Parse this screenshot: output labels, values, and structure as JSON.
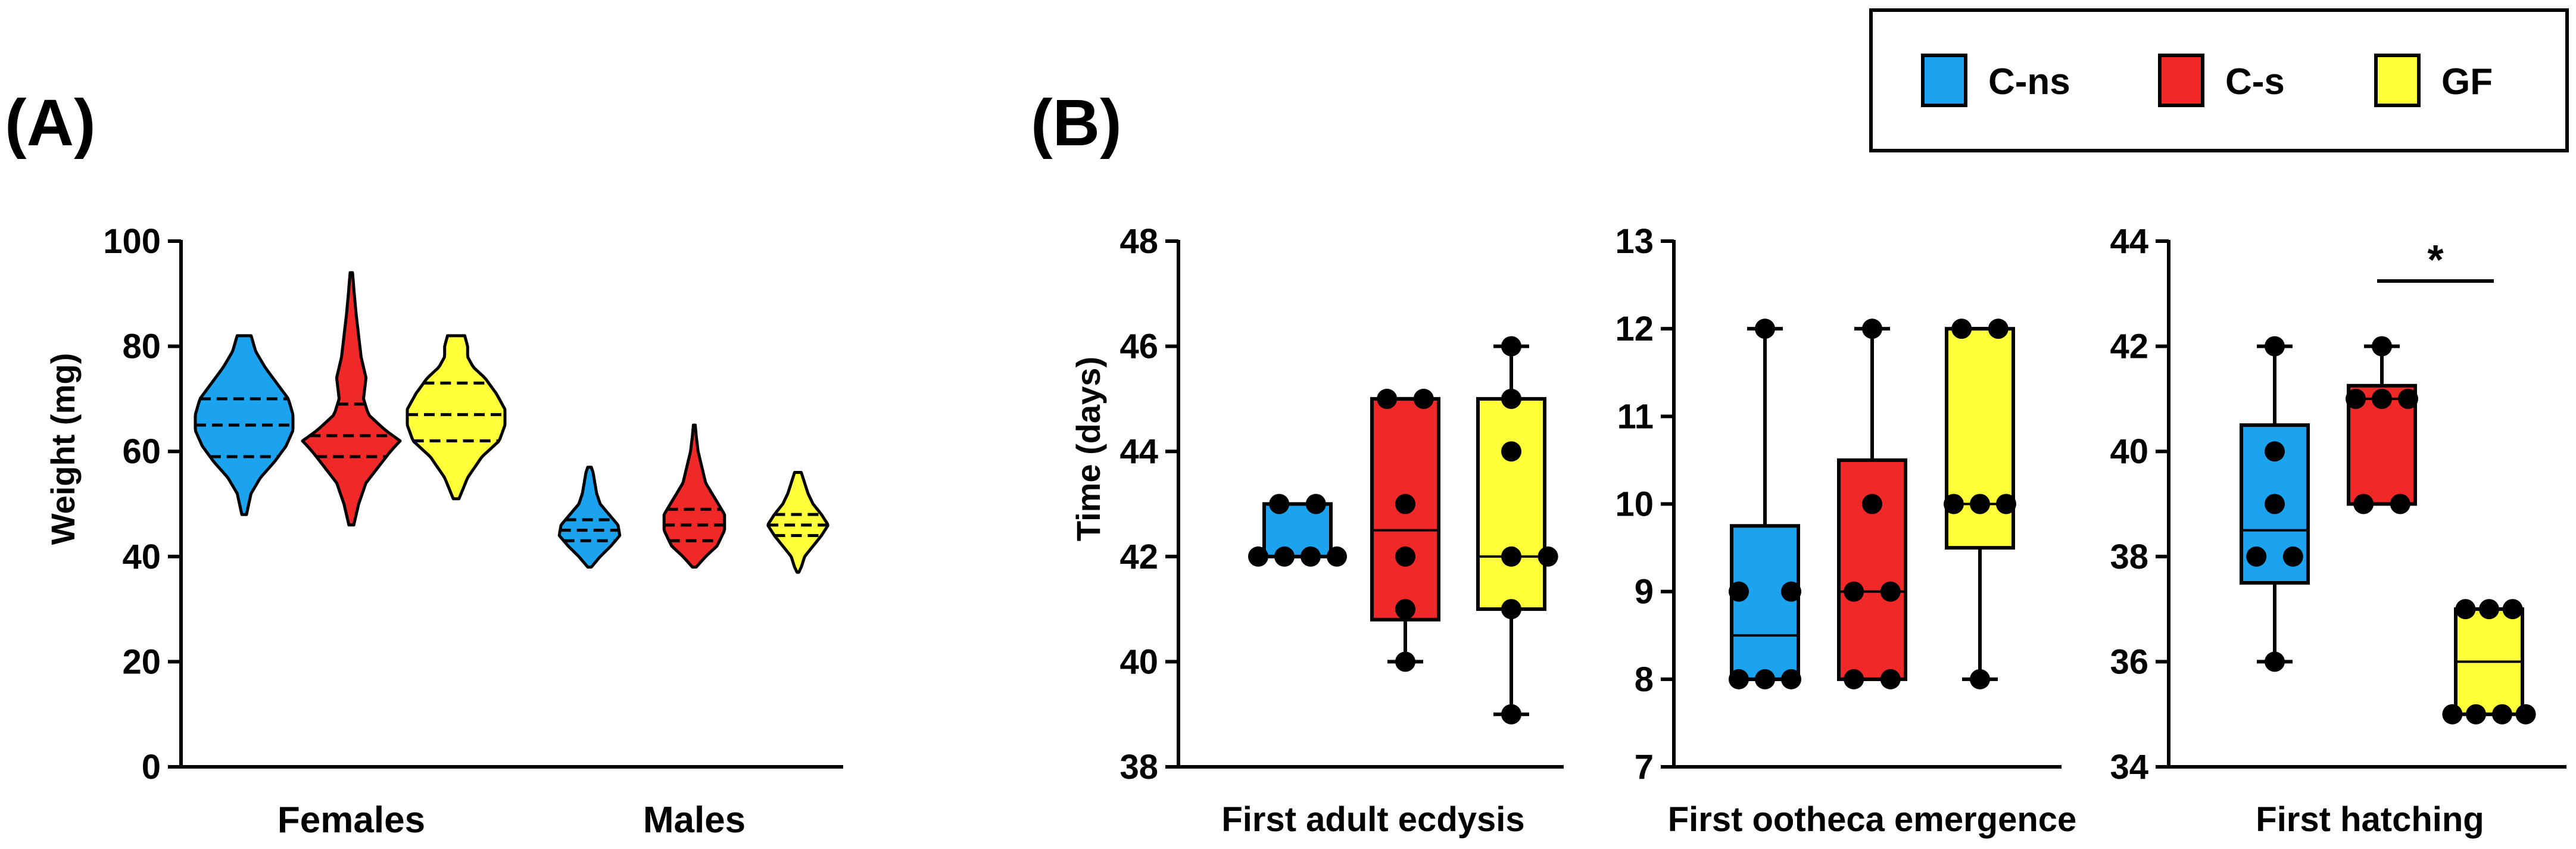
{
  "colors": {
    "C-ns": "#1ba3f0",
    "C-s": "#f02828",
    "GF": "#ffff3a"
  },
  "legend": {
    "items": [
      {
        "key": "C-ns",
        "label": "C-ns"
      },
      {
        "key": "C-s",
        "label": "C-s"
      },
      {
        "key": "GF",
        "label": "GF"
      }
    ]
  },
  "chart_data": [
    {
      "panel": "(A)",
      "type": "violin",
      "ylabel": "Weight (mg)",
      "ylim": [
        0,
        100
      ],
      "yticks": [
        0,
        20,
        40,
        60,
        80,
        100
      ],
      "categories": [
        "Females",
        "Males"
      ],
      "groups": [
        {
          "category": "Females",
          "series": "C-ns",
          "min": 48,
          "max": 82,
          "q1": 59,
          "median": 65,
          "q3": 70,
          "profile": [
            [
              48,
              1
            ],
            [
              52,
              3
            ],
            [
              55,
              7
            ],
            [
              58,
              13
            ],
            [
              61,
              18
            ],
            [
              64,
              21
            ],
            [
              67,
              21
            ],
            [
              70,
              19
            ],
            [
              73,
              14
            ],
            [
              76,
              9
            ],
            [
              79,
              5
            ],
            [
              82,
              3
            ]
          ]
        },
        {
          "category": "Females",
          "series": "C-s",
          "min": 46,
          "max": 94,
          "q1": 59,
          "median": 63,
          "q3": 69,
          "profile": [
            [
              46,
              1
            ],
            [
              50,
              3
            ],
            [
              54,
              6
            ],
            [
              57,
              11
            ],
            [
              60,
              16
            ],
            [
              62,
              20
            ],
            [
              64,
              14
            ],
            [
              67,
              7
            ],
            [
              70,
              5
            ],
            [
              74,
              6
            ],
            [
              78,
              4
            ],
            [
              82,
              3
            ],
            [
              86,
              2
            ],
            [
              90,
              1.2
            ],
            [
              94,
              0.5
            ]
          ]
        },
        {
          "category": "Females",
          "series": "GF",
          "min": 51,
          "max": 82,
          "q1": 62,
          "median": 67,
          "q3": 73,
          "profile": [
            [
              51,
              1
            ],
            [
              55,
              4
            ],
            [
              59,
              9
            ],
            [
              62,
              15
            ],
            [
              65,
              17
            ],
            [
              68,
              17
            ],
            [
              71,
              14
            ],
            [
              74,
              10
            ],
            [
              76,
              6
            ],
            [
              78,
              4
            ],
            [
              80,
              4
            ],
            [
              82,
              3
            ]
          ]
        },
        {
          "category": "Males",
          "series": "C-ns",
          "min": 38,
          "max": 57,
          "q1": 43,
          "median": 45,
          "q3": 47,
          "profile": [
            [
              38,
              1
            ],
            [
              40,
              6
            ],
            [
              42,
              12
            ],
            [
              44,
              17
            ],
            [
              46,
              16
            ],
            [
              48,
              11
            ],
            [
              50,
              6
            ],
            [
              52,
              4
            ],
            [
              54,
              3
            ],
            [
              56,
              2
            ],
            [
              57,
              1
            ]
          ]
        },
        {
          "category": "Males",
          "series": "C-s",
          "min": 38,
          "max": 65,
          "q1": 43,
          "median": 46,
          "q3": 49,
          "profile": [
            [
              38,
              1
            ],
            [
              40,
              6
            ],
            [
              42,
              12
            ],
            [
              45,
              16
            ],
            [
              48,
              16
            ],
            [
              51,
              11
            ],
            [
              54,
              6
            ],
            [
              57,
              4
            ],
            [
              60,
              2
            ],
            [
              63,
              1
            ],
            [
              65,
              0.5
            ]
          ]
        },
        {
          "category": "Males",
          "series": "GF",
          "min": 37,
          "max": 56,
          "q1": 44,
          "median": 46,
          "q3": 48,
          "profile": [
            [
              37,
              0.5
            ],
            [
              38,
              2
            ],
            [
              40,
              4
            ],
            [
              42,
              9
            ],
            [
              44,
              14
            ],
            [
              46,
              18
            ],
            [
              48,
              14
            ],
            [
              50,
              9
            ],
            [
              52,
              6
            ],
            [
              54,
              4
            ],
            [
              56,
              2
            ]
          ]
        }
      ]
    },
    {
      "panel": "(B)",
      "type": "box",
      "ylabel": "Time (days)",
      "xlabel": "First adult ecdysis",
      "ylim": [
        38,
        48
      ],
      "yticks": [
        38,
        40,
        42,
        44,
        46,
        48
      ],
      "boxes": [
        {
          "series": "C-ns",
          "whisker_low": 42,
          "q1": 42,
          "median": 42,
          "q3": 43,
          "whisker_high": 43,
          "points": [
            [
              42,
              -1.5
            ],
            [
              42,
              -0.5
            ],
            [
              42,
              0.5
            ],
            [
              42,
              1.5
            ],
            [
              43,
              -0.7
            ],
            [
              43,
              0.7
            ]
          ]
        },
        {
          "series": "C-s",
          "whisker_low": 40,
          "q1": 40.8,
          "median": 42.5,
          "q3": 45,
          "whisker_high": 45,
          "points": [
            [
              40,
              0
            ],
            [
              41,
              0
            ],
            [
              42,
              0
            ],
            [
              43,
              0
            ],
            [
              45,
              -0.7
            ],
            [
              45,
              0.7
            ]
          ]
        },
        {
          "series": "GF",
          "whisker_low": 39,
          "q1": 41,
          "median": 42,
          "q3": 45,
          "whisker_high": 46,
          "points": [
            [
              39,
              0
            ],
            [
              41,
              0
            ],
            [
              42,
              0
            ],
            [
              42,
              1.4
            ],
            [
              44,
              0
            ],
            [
              45,
              0
            ],
            [
              46,
              0
            ]
          ]
        }
      ]
    },
    {
      "panel": "(B)",
      "type": "box",
      "xlabel": "First ootheca emergence",
      "ylim": [
        7,
        13
      ],
      "yticks": [
        7,
        8,
        9,
        10,
        11,
        12,
        13
      ],
      "boxes": [
        {
          "series": "C-ns",
          "whisker_low": 8,
          "q1": 8,
          "median": 8.5,
          "q3": 9.75,
          "whisker_high": 12,
          "points": [
            [
              8,
              -1
            ],
            [
              8,
              0
            ],
            [
              8,
              1
            ],
            [
              9,
              -1
            ],
            [
              9,
              1
            ],
            [
              12,
              0
            ]
          ]
        },
        {
          "series": "C-s",
          "whisker_low": 8,
          "q1": 8,
          "median": 9,
          "q3": 10.5,
          "whisker_high": 12,
          "points": [
            [
              8,
              -0.7
            ],
            [
              8,
              0.7
            ],
            [
              9,
              -0.7
            ],
            [
              9,
              0.7
            ],
            [
              10,
              0
            ],
            [
              12,
              0
            ]
          ]
        },
        {
          "series": "GF",
          "whisker_low": 8,
          "q1": 9.5,
          "median": 10,
          "q3": 12,
          "whisker_high": 12,
          "points": [
            [
              8,
              0
            ],
            [
              10,
              -1
            ],
            [
              10,
              0
            ],
            [
              10,
              1
            ],
            [
              12,
              -0.7
            ],
            [
              12,
              0.7
            ]
          ]
        }
      ]
    },
    {
      "panel": "(B)",
      "type": "box",
      "xlabel": "First hatching",
      "ylim": [
        34,
        44
      ],
      "yticks": [
        34,
        36,
        38,
        40,
        42,
        44
      ],
      "boxes": [
        {
          "series": "C-ns",
          "whisker_low": 36,
          "q1": 37.5,
          "median": 38.5,
          "q3": 40.5,
          "whisker_high": 42,
          "points": [
            [
              36,
              0
            ],
            [
              38,
              -0.7
            ],
            [
              38,
              0.7
            ],
            [
              39,
              0
            ],
            [
              40,
              0
            ],
            [
              42,
              0
            ]
          ]
        },
        {
          "series": "C-s",
          "whisker_low": 39,
          "q1": 39,
          "median": 41,
          "q3": 41.25,
          "whisker_high": 42,
          "points": [
            [
              39,
              -0.7
            ],
            [
              39,
              0.7
            ],
            [
              41,
              -1
            ],
            [
              41,
              0
            ],
            [
              41,
              1
            ],
            [
              42,
              0
            ]
          ]
        },
        {
          "series": "GF",
          "whisker_low": 35,
          "q1": 35,
          "median": 36,
          "q3": 37,
          "whisker_high": 37,
          "points": [
            [
              35,
              -1.4
            ],
            [
              35,
              -0.5
            ],
            [
              35,
              0.5
            ],
            [
              35,
              1.4
            ],
            [
              37,
              -0.9
            ],
            [
              37,
              0
            ],
            [
              37,
              0.9
            ]
          ]
        }
      ],
      "annotation": {
        "text": "*",
        "between": [
          "C-s",
          "GF"
        ]
      }
    }
  ]
}
